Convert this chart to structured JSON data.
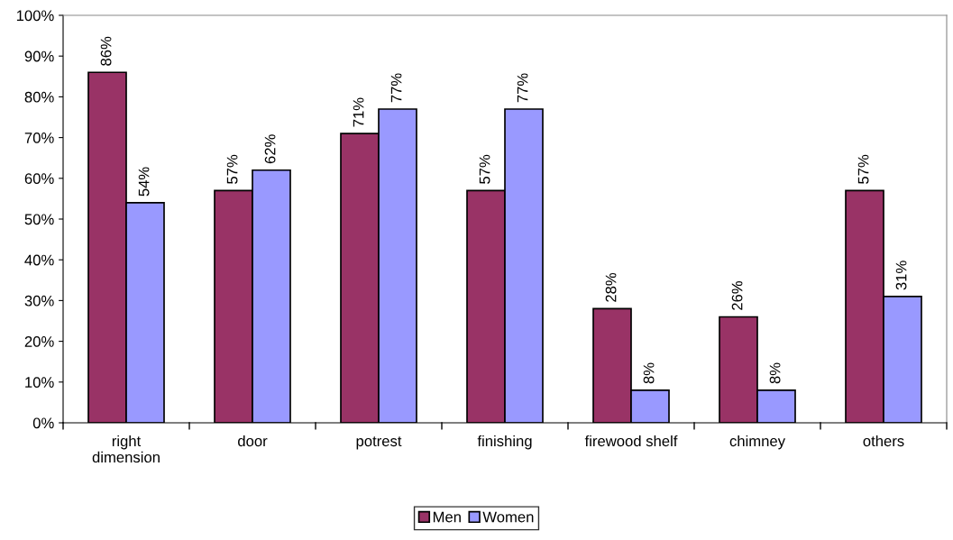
{
  "chart_data": {
    "type": "bar",
    "categories": [
      "right\ndimension",
      "door",
      "potrest",
      "finishing",
      "firewood shelf",
      "chimney",
      "others"
    ],
    "series": [
      {
        "name": "Men",
        "color": "#993366",
        "values": [
          86,
          57,
          71,
          57,
          28,
          26,
          57
        ],
        "value_labels": [
          "86%",
          "57%",
          "71%",
          "57%",
          "28%",
          "26%",
          "57%"
        ]
      },
      {
        "name": "Women",
        "color": "#9999ff",
        "values": [
          54,
          62,
          77,
          77,
          8,
          8,
          31
        ],
        "value_labels": [
          "54%",
          "62%",
          "77%",
          "77%",
          "8%",
          "8%",
          "31%"
        ]
      }
    ],
    "ylim": [
      0,
      100
    ],
    "yticks": [
      {
        "value": 0,
        "label": "0%"
      },
      {
        "value": 10,
        "label": "10%"
      },
      {
        "value": 20,
        "label": "20%"
      },
      {
        "value": 30,
        "label": "30%"
      },
      {
        "value": 40,
        "label": "40%"
      },
      {
        "value": 50,
        "label": "50%"
      },
      {
        "value": 60,
        "label": "60%"
      },
      {
        "value": 70,
        "label": "70%"
      },
      {
        "value": 80,
        "label": "80%"
      },
      {
        "value": 90,
        "label": "90%"
      },
      {
        "value": 100,
        "label": "100%"
      }
    ],
    "grid": false,
    "legend": "bottom"
  }
}
